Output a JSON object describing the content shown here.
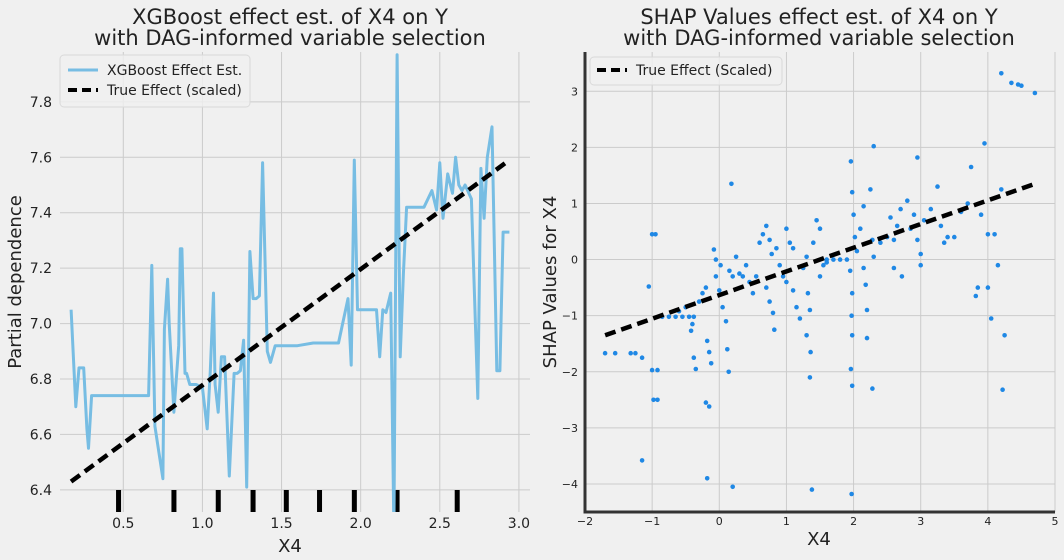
{
  "colors": {
    "background": "#f0f0f0",
    "grid": "#cbcbcb",
    "pd_line": "#77bde3",
    "true_line": "#000000",
    "shap_point": "#1f88e5"
  },
  "chart_data": [
    {
      "type": "line",
      "title_line1": "XGBoost effect est. of X4 on Y",
      "title_line2": "with DAG-informed variable selection",
      "xlabel": "X4",
      "ylabel": "Partial dependence",
      "xlim": [
        0.1,
        3.07
      ],
      "ylim": [
        6.32,
        7.98
      ],
      "xticks": [
        0.5,
        1.0,
        1.5,
        2.0,
        2.5,
        3.0
      ],
      "xtick_labels": [
        "0.5",
        "1.0",
        "1.5",
        "2.0",
        "2.5",
        "3.0"
      ],
      "yticks": [
        6.4,
        6.6,
        6.8,
        7.0,
        7.2,
        7.4,
        7.6,
        7.8
      ],
      "ytick_labels": [
        "6.4",
        "6.6",
        "6.8",
        "7.0",
        "7.2",
        "7.4",
        "7.6",
        "7.8"
      ],
      "grid": true,
      "legend_position": "top-left",
      "series": [
        {
          "name": "XGBoost Effect Est.",
          "style": "solid",
          "x": [
            0.17,
            0.2,
            0.22,
            0.25,
            0.27,
            0.28,
            0.3,
            0.4,
            0.5,
            0.6,
            0.66,
            0.68,
            0.7,
            0.75,
            0.76,
            0.78,
            0.79,
            0.82,
            0.85,
            0.86,
            0.87,
            0.89,
            0.9,
            0.92,
            0.96,
            1.0,
            1.03,
            1.05,
            1.07,
            1.08,
            1.1,
            1.12,
            1.14,
            1.17,
            1.2,
            1.22,
            1.24,
            1.26,
            1.28,
            1.3,
            1.32,
            1.34,
            1.36,
            1.38,
            1.41,
            1.43,
            1.46,
            1.5,
            1.55,
            1.6,
            1.7,
            1.78,
            1.86,
            1.92,
            1.94,
            1.96,
            1.98,
            2.05,
            2.1,
            2.12,
            2.14,
            2.16,
            2.19,
            2.21,
            2.23,
            2.25,
            2.27,
            2.29,
            2.32,
            2.35,
            2.4,
            2.45,
            2.48,
            2.5,
            2.52,
            2.55,
            2.58,
            2.6,
            2.62,
            2.64,
            2.66,
            2.7,
            2.74,
            2.76,
            2.78,
            2.8,
            2.83,
            2.86,
            2.88,
            2.9,
            2.92,
            2.94
          ],
          "y": [
            7.05,
            6.7,
            6.84,
            6.84,
            6.62,
            6.55,
            6.74,
            6.74,
            6.74,
            6.74,
            6.74,
            7.21,
            6.63,
            6.44,
            6.98,
            7.16,
            7.0,
            6.68,
            6.92,
            7.27,
            7.27,
            6.82,
            6.82,
            6.78,
            6.78,
            6.77,
            6.62,
            6.83,
            7.11,
            6.78,
            6.68,
            6.88,
            6.88,
            6.45,
            6.82,
            6.82,
            6.83,
            6.94,
            6.41,
            7.26,
            7.09,
            7.09,
            7.1,
            7.58,
            6.9,
            6.86,
            6.92,
            6.92,
            6.92,
            6.92,
            6.93,
            6.93,
            6.93,
            7.09,
            6.85,
            7.59,
            7.05,
            7.05,
            7.05,
            6.88,
            7.05,
            7.04,
            7.11,
            6.25,
            7.97,
            6.88,
            7.18,
            7.42,
            7.42,
            7.42,
            7.42,
            7.48,
            7.41,
            7.58,
            7.38,
            7.54,
            7.47,
            7.6,
            7.5,
            7.48,
            7.5,
            7.45,
            6.73,
            7.56,
            7.38,
            7.6,
            7.71,
            6.83,
            6.83,
            7.33,
            7.33,
            7.33
          ]
        },
        {
          "name": "True Effect (scaled)",
          "style": "dashed",
          "x": [
            0.17,
            2.94
          ],
          "y": [
            6.43,
            7.59
          ]
        }
      ],
      "rug": [
        0.47,
        0.82,
        1.1,
        1.32,
        1.53,
        1.74,
        1.96,
        2.23,
        2.61
      ]
    },
    {
      "type": "scatter",
      "title_line1": "SHAP Values effect est. of X4 on Y",
      "title_line2": "with DAG-informed variable selection",
      "xlabel": "X4",
      "ylabel": "SHAP Values for X4",
      "xlim": [
        -2.0,
        5.0
      ],
      "ylim": [
        -4.5,
        3.7
      ],
      "xticks": [
        -2,
        -1,
        0,
        1,
        2,
        3,
        4,
        5
      ],
      "xtick_labels": [
        "−2",
        "−1",
        "0",
        "1",
        "2",
        "3",
        "4",
        "5"
      ],
      "yticks": [
        -4,
        -3,
        -2,
        -1,
        0,
        1,
        2,
        3
      ],
      "ytick_labels": [
        "−4",
        "−3",
        "−2",
        "−1",
        "0",
        "1",
        "2",
        "3"
      ],
      "grid": true,
      "legend_position": "top-left",
      "true_effect": {
        "name": "True Effect (Scaled)",
        "x": [
          -1.7,
          4.7
        ],
        "y": [
          -1.35,
          1.35
        ]
      },
      "points": [
        [
          -1.7,
          -1.67
        ],
        [
          -1.55,
          -1.67
        ],
        [
          -1.32,
          -1.67
        ],
        [
          -1.25,
          -1.67
        ],
        [
          -1.15,
          -1.75
        ],
        [
          -1.15,
          -3.58
        ],
        [
          -1.05,
          -0.48
        ],
        [
          -1.0,
          0.45
        ],
        [
          -0.95,
          0.45
        ],
        [
          -1.0,
          -1.97
        ],
        [
          -0.92,
          -1.97
        ],
        [
          -0.98,
          -2.5
        ],
        [
          -0.92,
          -2.5
        ],
        [
          -0.85,
          -1.02
        ],
        [
          -0.75,
          -1.02
        ],
        [
          -0.65,
          -1.02
        ],
        [
          -0.55,
          -1.02
        ],
        [
          -0.45,
          -1.02
        ],
        [
          -0.38,
          -1.02
        ],
        [
          -0.6,
          -0.92
        ],
        [
          -0.5,
          -0.85
        ],
        [
          -0.4,
          -1.15
        ],
        [
          -0.42,
          -1.27
        ],
        [
          -0.38,
          -1.75
        ],
        [
          -0.35,
          -1.95
        ],
        [
          -0.3,
          -0.75
        ],
        [
          -0.25,
          -0.6
        ],
        [
          -0.2,
          -0.5
        ],
        [
          -0.18,
          -1.45
        ],
        [
          -0.15,
          -1.65
        ],
        [
          -0.12,
          -1.85
        ],
        [
          -0.2,
          -2.55
        ],
        [
          -0.15,
          -2.62
        ],
        [
          -0.18,
          -3.9
        ],
        [
          -0.08,
          0.18
        ],
        [
          -0.05,
          0.0
        ],
        [
          0.02,
          -0.1
        ],
        [
          -0.05,
          -0.3
        ],
        [
          0.0,
          -0.55
        ],
        [
          0.05,
          -0.85
        ],
        [
          0.1,
          -1.1
        ],
        [
          0.12,
          -1.6
        ],
        [
          0.14,
          -2.0
        ],
        [
          0.18,
          1.35
        ],
        [
          0.2,
          -4.05
        ],
        [
          0.15,
          -0.2
        ],
        [
          0.2,
          -0.3
        ],
        [
          0.3,
          -0.25
        ],
        [
          0.4,
          -0.1
        ],
        [
          0.25,
          0.05
        ],
        [
          0.35,
          -0.3
        ],
        [
          0.45,
          -0.4
        ],
        [
          0.5,
          -0.6
        ],
        [
          0.55,
          -0.3
        ],
        [
          0.6,
          0.3
        ],
        [
          0.65,
          0.45
        ],
        [
          0.7,
          0.6
        ],
        [
          0.75,
          0.35
        ],
        [
          0.7,
          -0.5
        ],
        [
          0.75,
          -0.75
        ],
        [
          0.8,
          -0.95
        ],
        [
          0.82,
          -1.25
        ],
        [
          0.78,
          0.1
        ],
        [
          0.85,
          0.2
        ],
        [
          0.9,
          -0.1
        ],
        [
          0.95,
          -0.3
        ],
        [
          1.0,
          -0.4
        ],
        [
          1.0,
          0.55
        ],
        [
          1.05,
          0.3
        ],
        [
          1.1,
          0.2
        ],
        [
          1.1,
          -0.55
        ],
        [
          1.15,
          -0.85
        ],
        [
          1.2,
          -1.05
        ],
        [
          1.25,
          -0.15
        ],
        [
          1.3,
          0.05
        ],
        [
          1.32,
          -0.6
        ],
        [
          1.35,
          -0.9
        ],
        [
          1.3,
          -1.35
        ],
        [
          1.36,
          -1.65
        ],
        [
          1.35,
          -2.1
        ],
        [
          1.38,
          -4.1
        ],
        [
          1.4,
          0.3
        ],
        [
          1.45,
          0.7
        ],
        [
          1.5,
          0.55
        ],
        [
          1.5,
          -0.3
        ],
        [
          1.55,
          -0.1
        ],
        [
          1.6,
          -0.05
        ],
        [
          1.6,
          0.0
        ],
        [
          1.7,
          0.0
        ],
        [
          1.8,
          0.0
        ],
        [
          1.9,
          0.0
        ],
        [
          1.95,
          -0.2
        ],
        [
          1.98,
          -0.6
        ],
        [
          1.97,
          -1.0
        ],
        [
          1.98,
          -1.35
        ],
        [
          1.96,
          -1.95
        ],
        [
          1.98,
          -2.25
        ],
        [
          1.97,
          -4.18
        ],
        [
          1.96,
          1.75
        ],
        [
          1.98,
          1.2
        ],
        [
          2.0,
          0.8
        ],
        [
          2.02,
          0.4
        ],
        [
          2.05,
          0.15
        ],
        [
          2.1,
          0.55
        ],
        [
          2.15,
          0.95
        ],
        [
          2.15,
          -0.15
        ],
        [
          2.18,
          -0.45
        ],
        [
          2.2,
          -0.9
        ],
        [
          2.2,
          -1.4
        ],
        [
          2.25,
          1.25
        ],
        [
          2.28,
          0.35
        ],
        [
          2.3,
          2.02
        ],
        [
          2.28,
          -2.3
        ],
        [
          2.3,
          0.05
        ],
        [
          2.4,
          0.3
        ],
        [
          2.5,
          0.4
        ],
        [
          2.6,
          0.35
        ],
        [
          2.55,
          0.75
        ],
        [
          2.6,
          -0.15
        ],
        [
          2.65,
          0.6
        ],
        [
          2.7,
          0.9
        ],
        [
          2.72,
          -0.3
        ],
        [
          2.8,
          1.05
        ],
        [
          2.85,
          0.55
        ],
        [
          2.9,
          0.8
        ],
        [
          2.95,
          1.82
        ],
        [
          2.95,
          0.35
        ],
        [
          3.0,
          0.1
        ],
        [
          3.0,
          -0.1
        ],
        [
          3.05,
          0.7
        ],
        [
          3.15,
          0.9
        ],
        [
          3.25,
          1.3
        ],
        [
          3.3,
          0.6
        ],
        [
          3.35,
          0.3
        ],
        [
          3.4,
          0.4
        ],
        [
          3.5,
          0.4
        ],
        [
          3.6,
          0.85
        ],
        [
          3.7,
          1.0
        ],
        [
          3.75,
          1.65
        ],
        [
          3.82,
          -0.65
        ],
        [
          3.85,
          -0.5
        ],
        [
          3.9,
          0.8
        ],
        [
          3.95,
          2.07
        ],
        [
          4.0,
          0.45
        ],
        [
          4.0,
          -0.5
        ],
        [
          4.05,
          -1.05
        ],
        [
          4.1,
          0.45
        ],
        [
          4.15,
          -0.1
        ],
        [
          4.2,
          3.32
        ],
        [
          4.2,
          1.25
        ],
        [
          4.22,
          -2.32
        ],
        [
          4.25,
          -1.35
        ],
        [
          4.35,
          3.15
        ],
        [
          4.45,
          3.12
        ],
        [
          4.5,
          3.1
        ],
        [
          4.7,
          2.97
        ]
      ]
    }
  ]
}
